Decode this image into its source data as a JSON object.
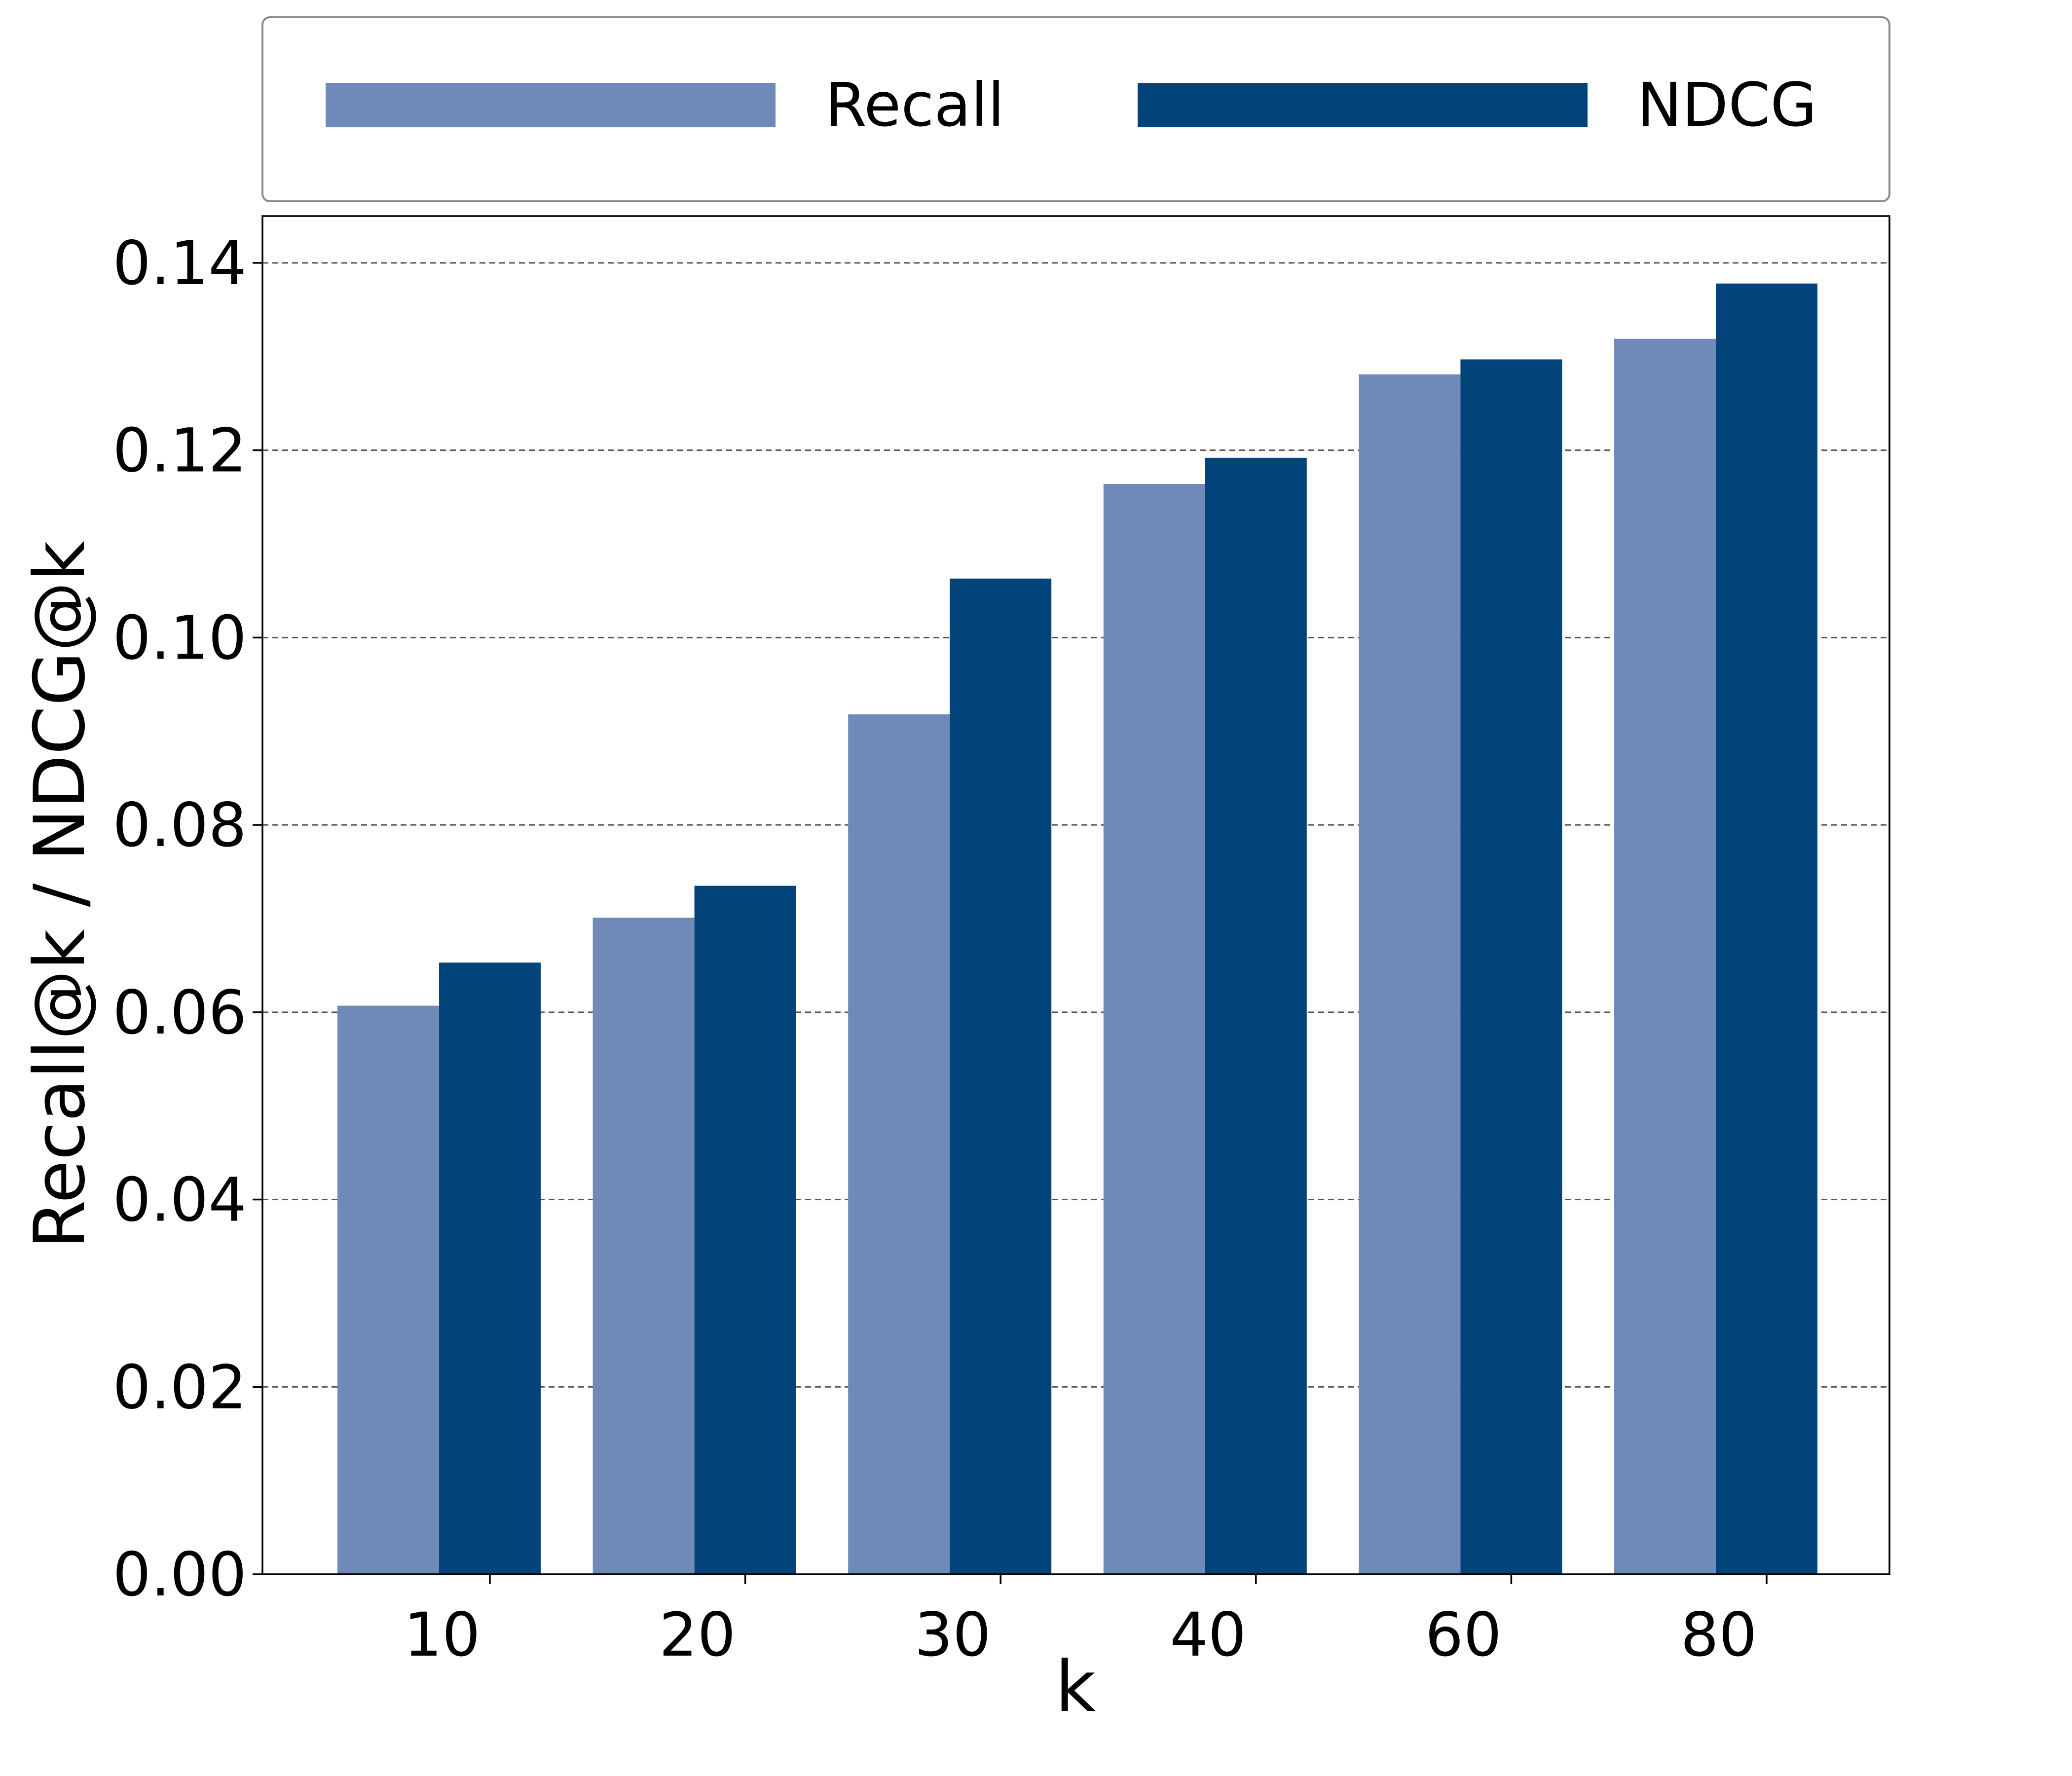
{
  "chart_data": {
    "type": "bar",
    "categories": [
      "10",
      "20",
      "30",
      "40",
      "60",
      "80"
    ],
    "series": [
      {
        "name": "Recall",
        "color": "#6f8ab8",
        "values": [
          0.0607,
          0.0701,
          0.0918,
          0.1164,
          0.1281,
          0.1319
        ]
      },
      {
        "name": "NDCG",
        "color": "#02437a",
        "values": [
          0.0653,
          0.0735,
          0.1063,
          0.1192,
          0.1297,
          0.1378
        ]
      }
    ],
    "xlabel": "k",
    "ylabel": "Recall@k / NDCG@k",
    "ylim": [
      0,
      0.145
    ],
    "yticks": [
      "0.00",
      "0.02",
      "0.04",
      "0.06",
      "0.08",
      "0.10",
      "0.12",
      "0.14"
    ],
    "grid": "horizontal dashed",
    "legend": {
      "placement": "top, outside",
      "entries": [
        "Recall",
        "NDCG"
      ]
    }
  }
}
